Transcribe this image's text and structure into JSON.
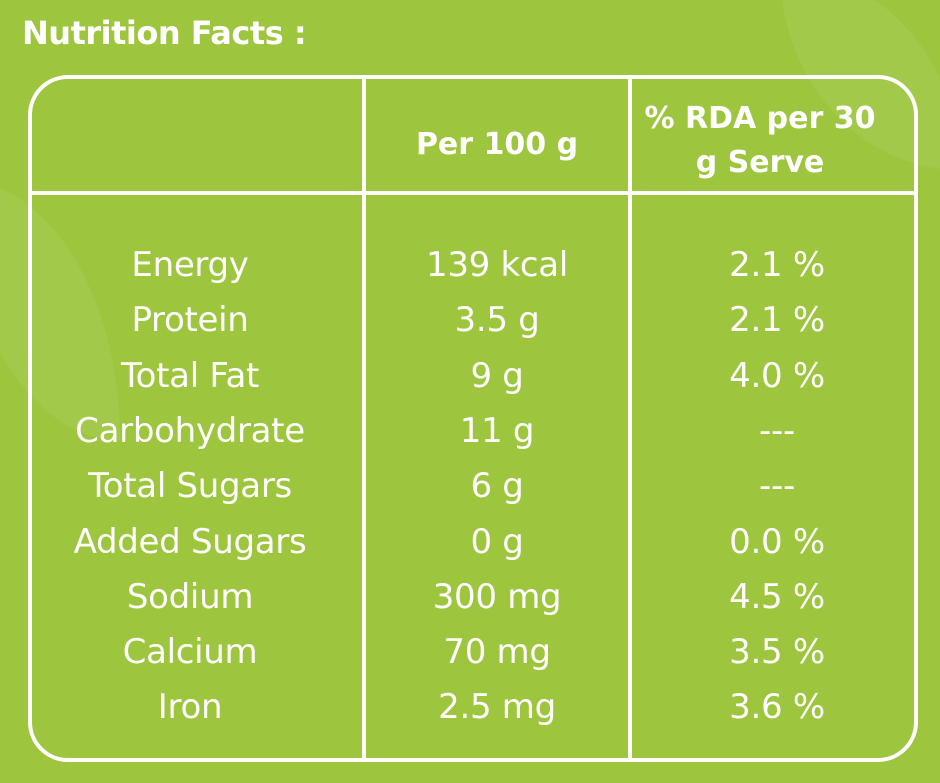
{
  "title": "Nutrition Facts :",
  "table": {
    "header": [
      "Per 100 g",
      "% RDA per 30 g Serve"
    ],
    "rows": [
      [
        "Energy",
        "139 kcal",
        "2.1 %"
      ],
      [
        "Protein",
        "3.5 g",
        "2.1 %"
      ],
      [
        "Total Fat",
        "9 g",
        "4.0 %"
      ],
      [
        "Carbohydrate",
        "11 g",
        "---"
      ],
      [
        "Total Sugars",
        "6 g",
        "---"
      ],
      [
        "Added Sugars",
        "0 g",
        "0.0 %"
      ],
      [
        "Sodium",
        "300 mg",
        "4.5 %"
      ],
      [
        "Calcium",
        "70 mg",
        "3.5 %"
      ],
      [
        "Iron",
        "2.5 mg",
        "3.6 %"
      ]
    ]
  }
}
